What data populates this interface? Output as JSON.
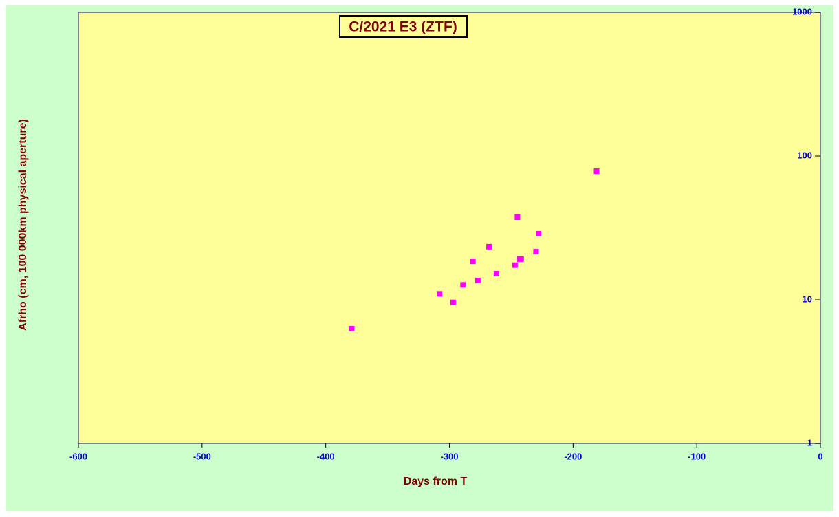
{
  "chart_data": {
    "type": "scatter",
    "title": "C/2021 E3 (ZTF)",
    "x_label": "Days from T",
    "y_label": "Afrho (cm, 100 000km physical aperture)",
    "xlim": [
      -600,
      0
    ],
    "xticks": [
      -600,
      -500,
      -400,
      -300,
      -200,
      -100,
      0
    ],
    "ylim": [
      1,
      1000
    ],
    "yticks": [
      1,
      10,
      100,
      1000
    ],
    "y_log": true,
    "y_axis_side": "right",
    "grid": false,
    "series": [
      {
        "name": "Afrho",
        "color": "#ff00ff",
        "x": [
          -379,
          -308,
          -297,
          -289,
          -281,
          -277,
          -268,
          -262,
          -247,
          -245,
          -243,
          -242,
          -230,
          -228,
          -181
        ],
        "values": [
          6.3,
          11.0,
          9.6,
          12.7,
          18.5,
          13.6,
          23.4,
          15.2,
          17.4,
          37.5,
          19.2,
          19.2,
          21.6,
          28.8,
          78.5
        ]
      }
    ]
  }
}
